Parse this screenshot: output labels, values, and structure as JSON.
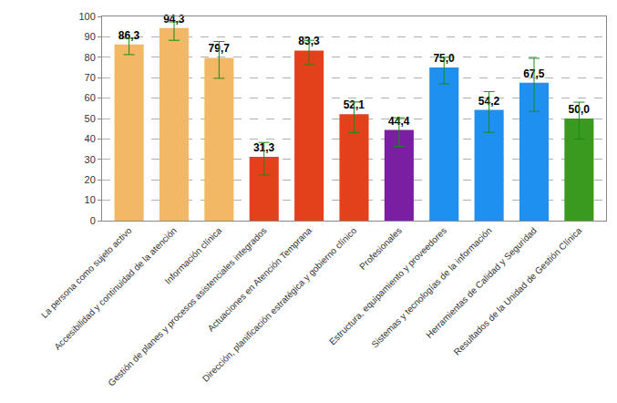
{
  "chart_data": {
    "type": "bar",
    "categories": [
      "La persona como sujeto activo",
      "Accesibilidad y continuidad de la atención",
      "Información clínica",
      "Gestión de planes y procesos asistenciales integrados",
      "Actuaciones en Atención Temprana",
      "Dirección, planificación estratégica y gobierno clínico",
      "Profesionales",
      "Estructura, equipamiento y proveedores",
      "Sistemas y tecnologías de la información",
      "Herramientas de Calidad y Seguridad",
      "Resultados de la Unidad de Gestión Clínica"
    ],
    "values": [
      86.3,
      94.3,
      79.7,
      31.3,
      83.3,
      52.1,
      44.4,
      75.0,
      54.2,
      67.5,
      50.0
    ],
    "value_labels": [
      "86,3",
      "94,3",
      "79,7",
      "31,3",
      "83,3",
      "52,1",
      "44,4",
      "75,0",
      "54,2",
      "67,5",
      "50,0"
    ],
    "error_plus": [
      3,
      3,
      8,
      7,
      5,
      6,
      6,
      5,
      9,
      12,
      8
    ],
    "error_minus": [
      5,
      6,
      10,
      9,
      7,
      9,
      8,
      8,
      11,
      14,
      10
    ],
    "colors": [
      "#f2b866",
      "#f2b866",
      "#f2b866",
      "#e2411b",
      "#e2411b",
      "#e2411b",
      "#7a1fa2",
      "#1e90ef",
      "#1e90ef",
      "#1e90ef",
      "#3a9a1f"
    ],
    "ylim": [
      0,
      100
    ],
    "yticks": [
      0,
      10,
      20,
      30,
      40,
      50,
      60,
      70,
      80,
      90,
      100
    ],
    "grid": true,
    "data_labels": true
  }
}
